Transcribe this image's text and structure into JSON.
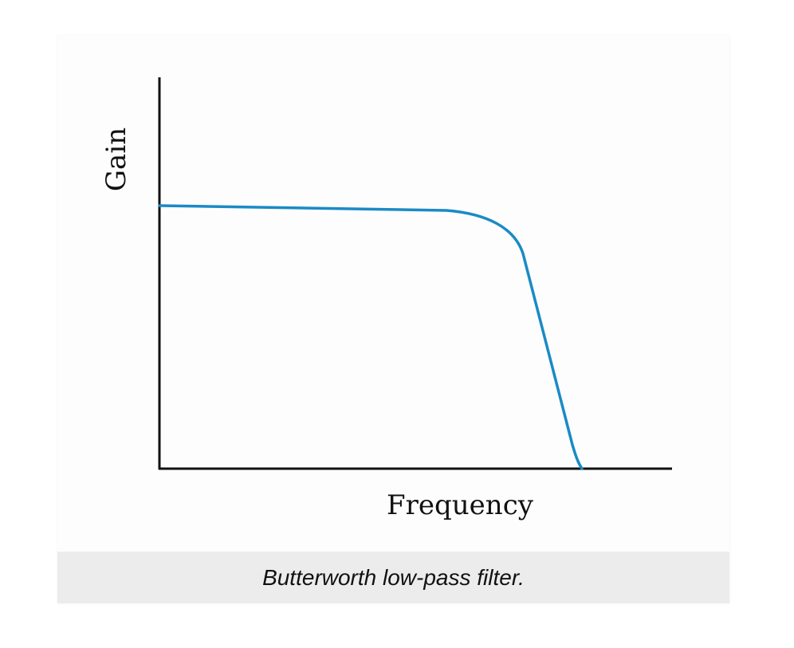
{
  "figure": {
    "y_axis_label": "Gain",
    "x_axis_label": "Frequency",
    "caption": "Butterworth low-pass filter."
  }
}
